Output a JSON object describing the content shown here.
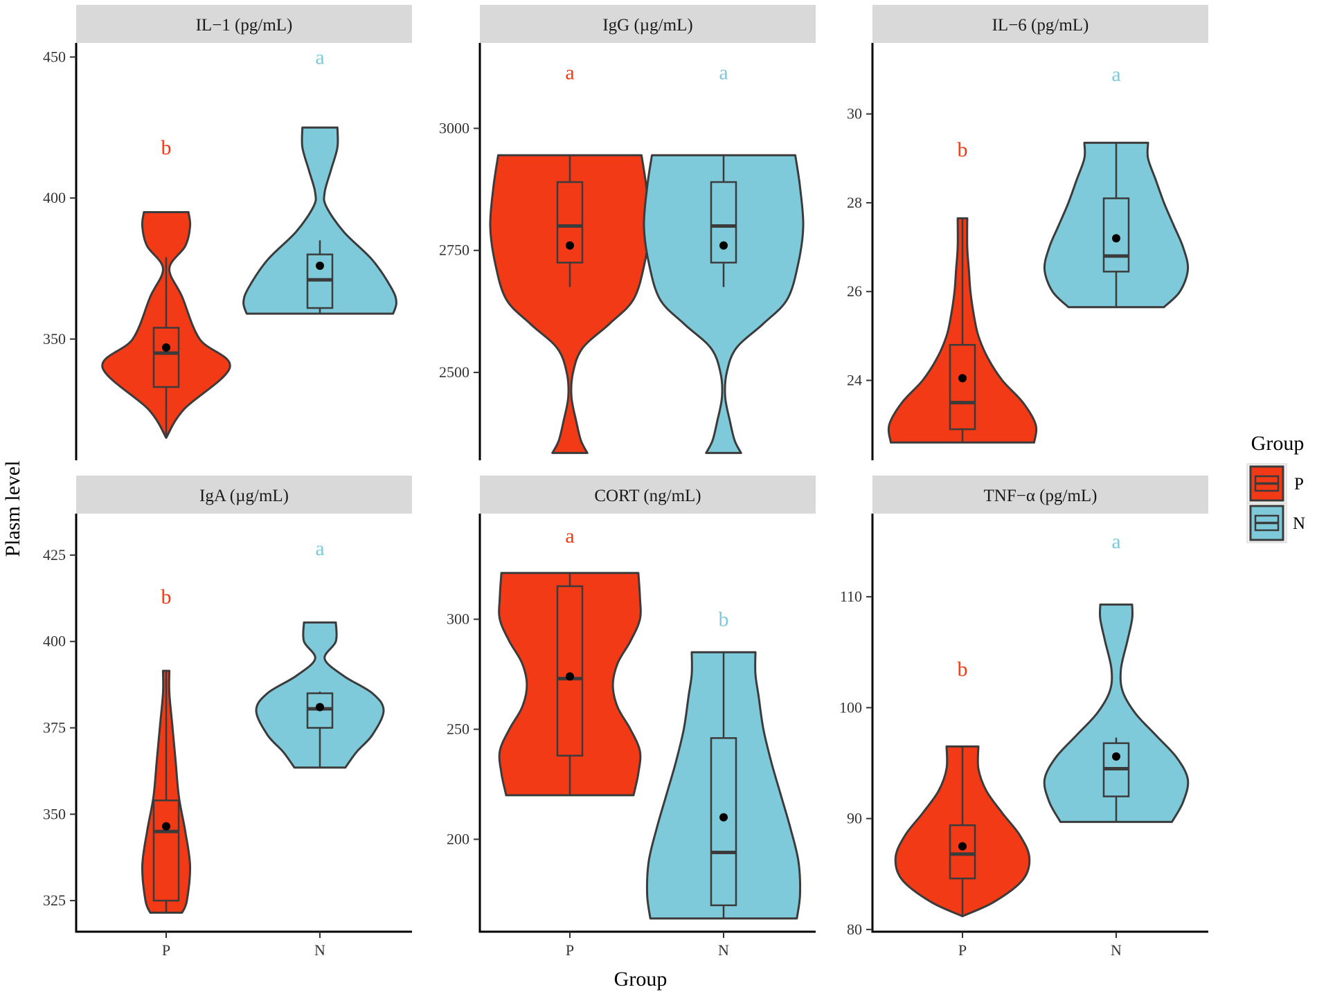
{
  "chart_data": {
    "type": "violin",
    "xlabel": "Group",
    "ylabel": "Plasm level",
    "categories": [
      "P",
      "N"
    ],
    "colors": {
      "P": "#f23a16",
      "N": "#7ecada"
    },
    "legend": {
      "title": "Group",
      "entries": [
        "P",
        "N"
      ],
      "placement": "right"
    },
    "grid": false,
    "panels": [
      {
        "title": "IL−1 (pg/mL)",
        "ylim": [
          307,
          455
        ],
        "yticks": [
          350,
          400,
          450
        ],
        "letters": {
          "P": "b",
          "N": "a"
        },
        "letter_y": {
          "P": 418,
          "N": 450
        },
        "groups": {
          "P": {
            "min": 315,
            "max": 395,
            "q1": 333,
            "median": 345,
            "q3": 354,
            "mean": 347,
            "whisker_low": 315,
            "whisker_high": 379,
            "density": [
              [
                315,
                0.0
              ],
              [
                325,
                0.11
              ],
              [
                340,
                0.4
              ],
              [
                350,
                0.21
              ],
              [
                365,
                0.1
              ],
              [
                375,
                0.02
              ],
              [
                383,
                0.12
              ],
              [
                390,
                0.15
              ],
              [
                395,
                0.14
              ]
            ]
          },
          "N": {
            "min": 359,
            "max": 425,
            "q1": 361,
            "median": 371,
            "q3": 380,
            "mean": 376,
            "whisker_low": 359,
            "whisker_high": 385,
            "density": [
              [
                359,
                0.46
              ],
              [
                363,
                0.48
              ],
              [
                368,
                0.45
              ],
              [
                378,
                0.33
              ],
              [
                388,
                0.15
              ],
              [
                397,
                0.04
              ],
              [
                402,
                0.03
              ],
              [
                410,
                0.07
              ],
              [
                418,
                0.11
              ],
              [
                425,
                0.11
              ]
            ]
          }
        }
      },
      {
        "title": "IgG (µg/mL)",
        "ylim": [
          2320,
          3175
        ],
        "yticks": [
          2500,
          2750,
          3000
        ],
        "letters": {
          "P": "a",
          "N": "a"
        },
        "letter_y": {
          "P": 3115,
          "N": 3115
        },
        "groups": {
          "P": {
            "min": 2335,
            "max": 2945,
            "q1": 2725,
            "median": 2800,
            "q3": 2890,
            "mean": 2760,
            "whisker_low": 2675,
            "whisker_high": 2945,
            "density": [
              [
                2335,
                0.11
              ],
              [
                2360,
                0.07
              ],
              [
                2400,
                0.04
              ],
              [
                2450,
                0.01
              ],
              [
                2500,
                0.02
              ],
              [
                2550,
                0.08
              ],
              [
                2600,
                0.25
              ],
              [
                2650,
                0.4
              ],
              [
                2725,
                0.47
              ],
              [
                2800,
                0.5
              ],
              [
                2880,
                0.48
              ],
              [
                2945,
                0.45
              ]
            ]
          },
          "N": {
            "min": 2335,
            "max": 2945,
            "q1": 2725,
            "median": 2800,
            "q3": 2890,
            "mean": 2760,
            "whisker_low": 2675,
            "whisker_high": 2945,
            "density": [
              [
                2335,
                0.11
              ],
              [
                2360,
                0.07
              ],
              [
                2400,
                0.04
              ],
              [
                2450,
                0.01
              ],
              [
                2500,
                0.02
              ],
              [
                2550,
                0.08
              ],
              [
                2600,
                0.25
              ],
              [
                2650,
                0.4
              ],
              [
                2725,
                0.47
              ],
              [
                2800,
                0.5
              ],
              [
                2880,
                0.48
              ],
              [
                2945,
                0.45
              ]
            ]
          }
        }
      },
      {
        "title": "IL−6 (pg/mL)",
        "ylim": [
          22.2,
          31.6
        ],
        "yticks": [
          24,
          26,
          28,
          30
        ],
        "letters": {
          "P": "b",
          "N": "a"
        },
        "letter_y": {
          "P": 29.2,
          "N": 30.9
        },
        "groups": {
          "P": {
            "min": 22.6,
            "max": 27.65,
            "q1": 22.9,
            "median": 23.5,
            "q3": 24.8,
            "mean": 24.05,
            "whisker_low": 22.6,
            "whisker_high": 27.65,
            "density": [
              [
                22.6,
                0.45
              ],
              [
                23.0,
                0.46
              ],
              [
                23.5,
                0.38
              ],
              [
                24.0,
                0.25
              ],
              [
                24.5,
                0.16
              ],
              [
                25.0,
                0.1
              ],
              [
                25.5,
                0.07
              ],
              [
                26.0,
                0.05
              ],
              [
                26.5,
                0.04
              ],
              [
                27.0,
                0.03
              ],
              [
                27.65,
                0.03
              ]
            ]
          },
          "N": {
            "min": 25.65,
            "max": 29.35,
            "q1": 26.45,
            "median": 26.8,
            "q3": 28.1,
            "mean": 27.2,
            "whisker_low": 25.65,
            "whisker_high": 29.35,
            "density": [
              [
                25.65,
                0.3
              ],
              [
                26.0,
                0.4
              ],
              [
                26.5,
                0.45
              ],
              [
                27.0,
                0.42
              ],
              [
                27.5,
                0.36
              ],
              [
                28.0,
                0.3
              ],
              [
                28.5,
                0.25
              ],
              [
                29.0,
                0.2
              ],
              [
                29.35,
                0.2
              ]
            ]
          }
        }
      },
      {
        "title": "IgA (µg/mL)",
        "ylim": [
          316,
          437
        ],
        "yticks": [
          325,
          350,
          375,
          400,
          425
        ],
        "letters": {
          "P": "b",
          "N": "a"
        },
        "letter_y": {
          "P": 413,
          "N": 427
        },
        "groups": {
          "P": {
            "min": 321.5,
            "max": 391.5,
            "q1": 325,
            "median": 345,
            "q3": 354,
            "mean": 346.5,
            "whisker_low": 321.5,
            "whisker_high": 391.5,
            "density": [
              [
                321.5,
                0.1
              ],
              [
                325,
                0.13
              ],
              [
                335,
                0.15
              ],
              [
                345,
                0.12
              ],
              [
                355,
                0.08
              ],
              [
                365,
                0.06
              ],
              [
                375,
                0.04
              ],
              [
                385,
                0.02
              ],
              [
                391.5,
                0.02
              ]
            ]
          },
          "N": {
            "min": 363.5,
            "max": 405.5,
            "q1": 375,
            "median": 380.5,
            "q3": 385,
            "mean": 381,
            "whisker_low": 363.5,
            "whisker_high": 385.5,
            "density": [
              [
                363.5,
                0.16
              ],
              [
                368,
                0.23
              ],
              [
                373,
                0.33
              ],
              [
                380,
                0.4
              ],
              [
                385,
                0.33
              ],
              [
                390,
                0.15
              ],
              [
                395,
                0.03
              ],
              [
                400,
                0.1
              ],
              [
                405.5,
                0.1
              ]
            ]
          }
        }
      },
      {
        "title": "CORT (ng/mL)",
        "ylim": [
          158,
          348
        ],
        "yticks": [
          200,
          250,
          300
        ],
        "letters": {
          "P": "a",
          "N": "b"
        },
        "letter_y": {
          "P": 338,
          "N": 300
        },
        "groups": {
          "P": {
            "min": 220,
            "max": 321,
            "q1": 238,
            "median": 273,
            "q3": 315,
            "mean": 274,
            "whisker_low": 220,
            "whisker_high": 321,
            "density": [
              [
                220,
                0.4
              ],
              [
                230,
                0.43
              ],
              [
                240,
                0.44
              ],
              [
                250,
                0.38
              ],
              [
                260,
                0.3
              ],
              [
                270,
                0.27
              ],
              [
                280,
                0.3
              ],
              [
                290,
                0.38
              ],
              [
                300,
                0.44
              ],
              [
                310,
                0.44
              ],
              [
                321,
                0.43
              ]
            ]
          },
          "N": {
            "min": 164,
            "max": 285,
            "q1": 170,
            "median": 194,
            "q3": 246,
            "mean": 210,
            "whisker_low": 164,
            "whisker_high": 285,
            "density": [
              [
                164,
                0.46
              ],
              [
                175,
                0.48
              ],
              [
                190,
                0.47
              ],
              [
                205,
                0.42
              ],
              [
                220,
                0.36
              ],
              [
                235,
                0.3
              ],
              [
                250,
                0.25
              ],
              [
                265,
                0.22
              ],
              [
                275,
                0.2
              ],
              [
                285,
                0.2
              ]
            ]
          }
        }
      },
      {
        "title": "TNF−α (pg/mL)",
        "ylim": [
          79.8,
          117.5
        ],
        "yticks": [
          80,
          90,
          100,
          110
        ],
        "letters": {
          "P": "b",
          "N": "a"
        },
        "letter_y": {
          "P": 103.5,
          "N": 115
        },
        "groups": {
          "P": {
            "min": 81.2,
            "max": 96.5,
            "q1": 84.6,
            "median": 86.8,
            "q3": 89.4,
            "mean": 87.5,
            "whisker_low": 81.2,
            "whisker_high": 96.5,
            "density": [
              [
                81.2,
                0.0
              ],
              [
                82.5,
                0.2
              ],
              [
                84.5,
                0.38
              ],
              [
                86.5,
                0.42
              ],
              [
                88.5,
                0.36
              ],
              [
                90.5,
                0.25
              ],
              [
                92.5,
                0.15
              ],
              [
                94.5,
                0.1
              ],
              [
                96.5,
                0.1
              ]
            ]
          },
          "N": {
            "min": 89.7,
            "max": 109.3,
            "q1": 92.0,
            "median": 94.5,
            "q3": 96.8,
            "mean": 95.6,
            "whisker_low": 89.7,
            "whisker_high": 97.3,
            "density": [
              [
                89.7,
                0.35
              ],
              [
                91.5,
                0.42
              ],
              [
                93.5,
                0.45
              ],
              [
                95.5,
                0.38
              ],
              [
                97.5,
                0.25
              ],
              [
                99.5,
                0.12
              ],
              [
                101.5,
                0.04
              ],
              [
                103.5,
                0.03
              ],
              [
                106,
                0.07
              ],
              [
                108,
                0.1
              ],
              [
                109.3,
                0.1
              ]
            ]
          }
        }
      }
    ]
  }
}
